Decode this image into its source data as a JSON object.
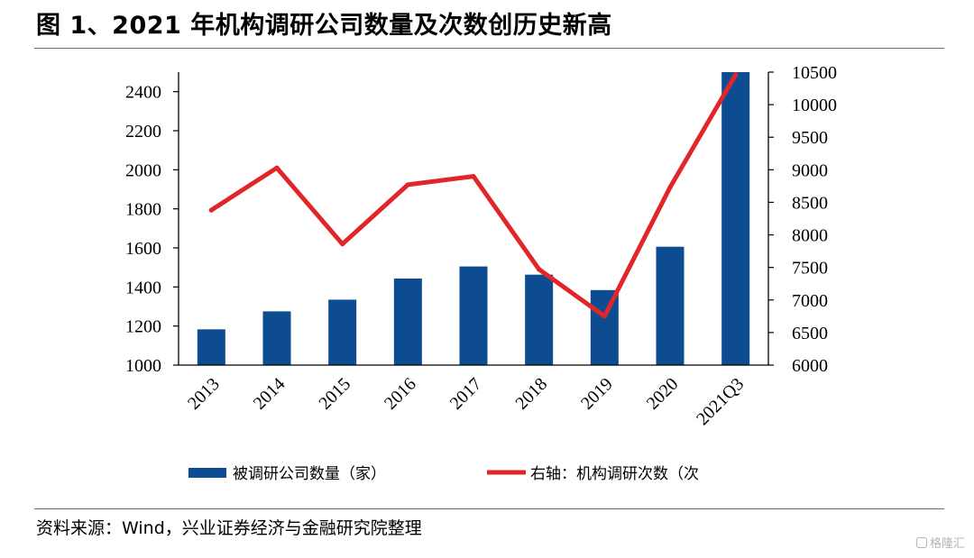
{
  "title": "图 1、2021 年机构调研公司数量及次数创历史新高",
  "source": "资料来源：Wind，兴业证券经济与金融研究院整理",
  "watermark": "格隆汇",
  "colors": {
    "bar": "#0e4c92",
    "line": "#e1262a"
  },
  "chart_data": {
    "type": "bar",
    "categories": [
      "2013",
      "2014",
      "2015",
      "2016",
      "2017",
      "2018",
      "2019",
      "2020",
      "2021Q3"
    ],
    "series": [
      {
        "name": "被调研公司数量（家）",
        "type": "bar",
        "axis": "left",
        "values": [
          1183,
          1275,
          1335,
          1443,
          1505,
          1463,
          1384,
          1606,
          2500
        ]
      },
      {
        "name": "右轴：机构调研次数（次",
        "type": "line",
        "axis": "right",
        "values": [
          8380,
          9030,
          7860,
          8770,
          8900,
          7470,
          6750,
          8730,
          10460
        ]
      }
    ],
    "left_axis": {
      "ylim": [
        1000,
        2500
      ],
      "ticks": [
        1000,
        1200,
        1400,
        1600,
        1800,
        2000,
        2200,
        2400
      ]
    },
    "right_axis": {
      "ylim": [
        6000,
        10500
      ],
      "ticks": [
        6000,
        6500,
        7000,
        7500,
        8000,
        8500,
        9000,
        9500,
        10000,
        10500
      ]
    },
    "grid": false,
    "legend_position": "bottom"
  }
}
